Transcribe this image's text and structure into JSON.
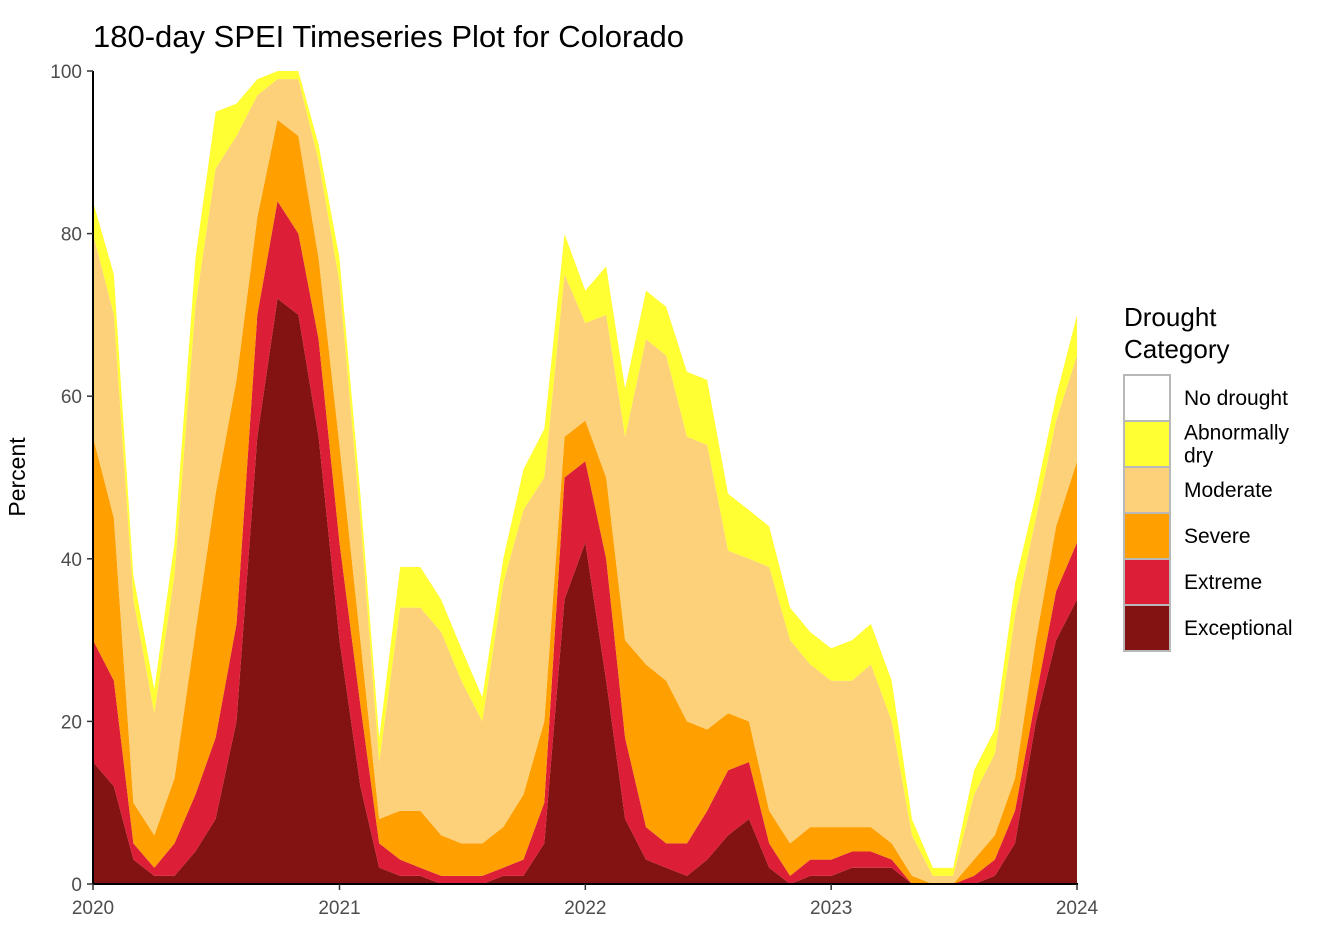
{
  "chart_data": {
    "type": "area",
    "title": "180-day SPEI Timeseries Plot for Colorado",
    "xlabel": "",
    "ylabel": "Percent",
    "ylim": [
      0,
      100
    ],
    "xlim": [
      "2020-01-01",
      "2024-01-01"
    ],
    "y_ticks": [
      "0",
      "20",
      "40",
      "60",
      "80",
      "100"
    ],
    "x_ticks": [
      {
        "date": "2020-01-01",
        "label": "2020"
      },
      {
        "date": "2021-01-01",
        "label": "2021"
      },
      {
        "date": "2022-01-01",
        "label": "2022"
      },
      {
        "date": "2023-01-01",
        "label": "2023"
      },
      {
        "date": "2024-01-01",
        "label": "2024"
      }
    ],
    "grid": false,
    "stacked": true,
    "legend": {
      "title_lines": [
        "Drought",
        "Category"
      ],
      "position": "right",
      "entries": [
        {
          "label": "No drought",
          "color": "#FFFFFF"
        },
        {
          "label_lines": [
            "Abnormally",
            "dry"
          ],
          "color": "#FFFF33"
        },
        {
          "label": "Moderate",
          "color": "#FDD07A"
        },
        {
          "label": "Severe",
          "color": "#FFA000"
        },
        {
          "label": "Extreme",
          "color": "#DC1F37"
        },
        {
          "label": "Exceptional",
          "color": "#831212"
        }
      ]
    },
    "x": [
      "2020-01-01",
      "2020-02-01",
      "2020-03-01",
      "2020-04-01",
      "2020-05-01",
      "2020-06-01",
      "2020-07-01",
      "2020-08-01",
      "2020-09-01",
      "2020-10-01",
      "2020-11-01",
      "2020-12-01",
      "2021-01-01",
      "2021-02-01",
      "2021-03-01",
      "2021-04-01",
      "2021-05-01",
      "2021-06-01",
      "2021-07-01",
      "2021-08-01",
      "2021-09-01",
      "2021-10-01",
      "2021-11-01",
      "2021-12-01",
      "2022-01-01",
      "2022-02-01",
      "2022-03-01",
      "2022-04-01",
      "2022-05-01",
      "2022-06-01",
      "2022-07-01",
      "2022-08-01",
      "2022-09-01",
      "2022-10-01",
      "2022-11-01",
      "2022-12-01",
      "2023-01-01",
      "2023-02-01",
      "2023-03-01",
      "2023-04-01",
      "2023-05-01",
      "2023-06-01",
      "2023-07-01",
      "2023-08-01",
      "2023-09-01",
      "2023-10-01",
      "2023-11-01",
      "2023-12-01",
      "2024-01-01"
    ],
    "series": [
      {
        "name": "Exceptional",
        "color": "#831212",
        "values": [
          15,
          12,
          3,
          1,
          1,
          4,
          8,
          20,
          55,
          72,
          70,
          55,
          30,
          12,
          2,
          1,
          1,
          0,
          0,
          0,
          1,
          1,
          5,
          35,
          42,
          25,
          8,
          3,
          2,
          1,
          3,
          6,
          8,
          2,
          0,
          1,
          1,
          2,
          2,
          2,
          0,
          0,
          0,
          0,
          1,
          5,
          20,
          30,
          35
        ]
      },
      {
        "name": "Extreme",
        "color": "#DC1F37",
        "values": [
          15,
          13,
          2,
          1,
          4,
          7,
          10,
          12,
          15,
          12,
          10,
          12,
          12,
          10,
          3,
          2,
          1,
          1,
          1,
          1,
          1,
          2,
          5,
          15,
          10,
          15,
          10,
          4,
          3,
          4,
          6,
          8,
          7,
          3,
          1,
          2,
          2,
          2,
          2,
          1,
          0,
          0,
          0,
          1,
          2,
          4,
          3,
          6,
          7
        ]
      },
      {
        "name": "Severe",
        "color": "#FFA000",
        "values": [
          25,
          20,
          5,
          4,
          8,
          20,
          30,
          30,
          12,
          10,
          12,
          10,
          12,
          8,
          3,
          6,
          7,
          5,
          4,
          4,
          5,
          8,
          10,
          5,
          5,
          10,
          12,
          20,
          20,
          15,
          10,
          7,
          5,
          4,
          4,
          4,
          4,
          3,
          3,
          2,
          1,
          0,
          0,
          2,
          3,
          4,
          7,
          8,
          10
        ]
      },
      {
        "name": "Moderate",
        "color": "#FDD07A",
        "values": [
          25,
          25,
          25,
          15,
          25,
          40,
          40,
          30,
          15,
          5,
          7,
          12,
          20,
          15,
          7,
          25,
          25,
          25,
          20,
          15,
          30,
          35,
          30,
          20,
          12,
          20,
          25,
          40,
          40,
          35,
          35,
          20,
          20,
          30,
          25,
          20,
          18,
          18,
          20,
          15,
          5,
          1,
          1,
          8,
          10,
          20,
          15,
          13,
          13
        ]
      },
      {
        "name": "Abnormally dry",
        "color": "#FFFF33",
        "values": [
          4,
          5,
          3,
          3,
          4,
          6,
          7,
          4,
          2,
          1,
          1,
          2,
          3,
          3,
          3,
          5,
          5,
          4,
          4,
          3,
          3,
          5,
          6,
          5,
          4,
          6,
          6,
          6,
          6,
          8,
          8,
          7,
          6,
          5,
          4,
          4,
          4,
          5,
          5,
          5,
          2,
          1,
          1,
          3,
          3,
          4,
          3,
          3,
          5
        ]
      },
      {
        "name": "No drought",
        "color": "#FFFFFF",
        "values": [
          16,
          25,
          62,
          76,
          58,
          23,
          5,
          4,
          1,
          0,
          0,
          9,
          23,
          52,
          82,
          61,
          61,
          65,
          71,
          77,
          60,
          49,
          44,
          20,
          27,
          24,
          39,
          27,
          29,
          37,
          38,
          52,
          54,
          56,
          66,
          69,
          71,
          70,
          68,
          75,
          92,
          98,
          98,
          86,
          81,
          63,
          52,
          40,
          30
        ]
      }
    ]
  }
}
